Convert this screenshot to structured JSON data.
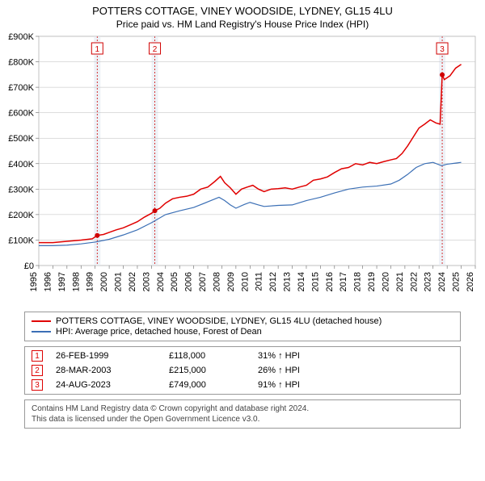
{
  "title1": "POTTERS COTTAGE, VINEY WOODSIDE, LYDNEY, GL15 4LU",
  "title2": "Price paid vs. HM Land Registry's House Price Index (HPI)",
  "title_fontsize": 13,
  "subtitle_fontsize": 12,
  "chart": {
    "type": "line",
    "background_color": "#ffffff",
    "plot_border_color": "#aaaaaa",
    "grid_color": "#bbbbbb",
    "x_years": [
      1995,
      1996,
      1997,
      1998,
      1999,
      2000,
      2001,
      2002,
      2003,
      2004,
      2005,
      2006,
      2007,
      2008,
      2009,
      2010,
      2011,
      2012,
      2013,
      2014,
      2015,
      2016,
      2017,
      2018,
      2019,
      2020,
      2021,
      2022,
      2023,
      2024,
      2025,
      2026
    ],
    "xlim": [
      1995,
      2026
    ],
    "ylim": [
      0,
      900000
    ],
    "ytick_step": 100000,
    "ytick_labels": [
      "£0",
      "£100K",
      "£200K",
      "£300K",
      "£400K",
      "£500K",
      "£600K",
      "£700K",
      "£800K",
      "£900K"
    ],
    "series": [
      {
        "name": "property",
        "color": "#e00000",
        "width": 1.5,
        "points": [
          [
            1995.0,
            90000
          ],
          [
            1996.0,
            90000
          ],
          [
            1997.0,
            95000
          ],
          [
            1998.0,
            100000
          ],
          [
            1998.8,
            105000
          ],
          [
            1999.15,
            118000
          ],
          [
            1999.6,
            122000
          ],
          [
            2000.0,
            130000
          ],
          [
            2000.5,
            140000
          ],
          [
            2001.0,
            148000
          ],
          [
            2001.5,
            160000
          ],
          [
            2002.0,
            172000
          ],
          [
            2002.5,
            190000
          ],
          [
            2003.0,
            205000
          ],
          [
            2003.24,
            215000
          ],
          [
            2003.6,
            225000
          ],
          [
            2004.0,
            245000
          ],
          [
            2004.5,
            262000
          ],
          [
            2005.0,
            268000
          ],
          [
            2005.5,
            272000
          ],
          [
            2006.0,
            280000
          ],
          [
            2006.5,
            300000
          ],
          [
            2007.0,
            308000
          ],
          [
            2007.5,
            330000
          ],
          [
            2007.9,
            350000
          ],
          [
            2008.2,
            325000
          ],
          [
            2008.6,
            305000
          ],
          [
            2009.0,
            280000
          ],
          [
            2009.4,
            300000
          ],
          [
            2009.8,
            308000
          ],
          [
            2010.2,
            315000
          ],
          [
            2010.6,
            300000
          ],
          [
            2011.0,
            290000
          ],
          [
            2011.5,
            300000
          ],
          [
            2012.0,
            302000
          ],
          [
            2012.5,
            305000
          ],
          [
            2013.0,
            300000
          ],
          [
            2013.5,
            308000
          ],
          [
            2014.0,
            315000
          ],
          [
            2014.5,
            335000
          ],
          [
            2015.0,
            340000
          ],
          [
            2015.5,
            348000
          ],
          [
            2016.0,
            365000
          ],
          [
            2016.5,
            380000
          ],
          [
            2017.0,
            385000
          ],
          [
            2017.5,
            400000
          ],
          [
            2018.0,
            395000
          ],
          [
            2018.5,
            405000
          ],
          [
            2019.0,
            400000
          ],
          [
            2019.5,
            408000
          ],
          [
            2020.0,
            415000
          ],
          [
            2020.4,
            420000
          ],
          [
            2020.8,
            440000
          ],
          [
            2021.2,
            470000
          ],
          [
            2021.6,
            505000
          ],
          [
            2022.0,
            540000
          ],
          [
            2022.4,
            555000
          ],
          [
            2022.8,
            572000
          ],
          [
            2023.2,
            560000
          ],
          [
            2023.5,
            555000
          ],
          [
            2023.65,
            749000
          ],
          [
            2023.8,
            730000
          ],
          [
            2024.2,
            745000
          ],
          [
            2024.6,
            775000
          ],
          [
            2025.0,
            790000
          ]
        ]
      },
      {
        "name": "hpi",
        "color": "#3b6fb5",
        "width": 1.2,
        "points": [
          [
            1995.0,
            78000
          ],
          [
            1996.0,
            78000
          ],
          [
            1997.0,
            80000
          ],
          [
            1998.0,
            85000
          ],
          [
            1999.0,
            92000
          ],
          [
            2000.0,
            103000
          ],
          [
            2001.0,
            120000
          ],
          [
            2002.0,
            140000
          ],
          [
            2003.0,
            168000
          ],
          [
            2004.0,
            200000
          ],
          [
            2005.0,
            215000
          ],
          [
            2006.0,
            228000
          ],
          [
            2007.0,
            250000
          ],
          [
            2007.8,
            268000
          ],
          [
            2008.2,
            255000
          ],
          [
            2008.6,
            238000
          ],
          [
            2009.0,
            225000
          ],
          [
            2009.6,
            240000
          ],
          [
            2010.0,
            248000
          ],
          [
            2010.6,
            238000
          ],
          [
            2011.0,
            232000
          ],
          [
            2012.0,
            236000
          ],
          [
            2013.0,
            238000
          ],
          [
            2014.0,
            255000
          ],
          [
            2015.0,
            268000
          ],
          [
            2016.0,
            285000
          ],
          [
            2017.0,
            300000
          ],
          [
            2018.0,
            308000
          ],
          [
            2019.0,
            312000
          ],
          [
            2020.0,
            320000
          ],
          [
            2020.6,
            335000
          ],
          [
            2021.2,
            358000
          ],
          [
            2021.8,
            385000
          ],
          [
            2022.4,
            400000
          ],
          [
            2023.0,
            405000
          ],
          [
            2023.6,
            392000
          ],
          [
            2024.0,
            398000
          ],
          [
            2024.6,
            402000
          ],
          [
            2025.0,
            405000
          ]
        ]
      }
    ],
    "sales_markers": [
      {
        "n": "1",
        "year": 1999.15,
        "price": 118000,
        "band_color": "#eef2f7",
        "dash_color": "#d00000"
      },
      {
        "n": "2",
        "year": 2003.24,
        "price": 215000,
        "band_color": "#eef2f7",
        "dash_color": "#d00000"
      },
      {
        "n": "3",
        "year": 2023.65,
        "price": 749000,
        "band_color": "#eef2f7",
        "dash_color": "#d00000"
      }
    ],
    "sale_dot_color": "#d00000",
    "sale_dot_radius": 3
  },
  "legend": {
    "items": [
      {
        "color": "#e00000",
        "label": "POTTERS COTTAGE, VINEY WOODSIDE, LYDNEY, GL15 4LU (detached house)"
      },
      {
        "color": "#3b6fb5",
        "label": "HPI: Average price, detached house, Forest of Dean"
      }
    ]
  },
  "sales_table": {
    "rows": [
      {
        "n": "1",
        "date": "26-FEB-1999",
        "price": "£118,000",
        "delta": "31% ↑ HPI"
      },
      {
        "n": "2",
        "date": "28-MAR-2003",
        "price": "£215,000",
        "delta": "26% ↑ HPI"
      },
      {
        "n": "3",
        "date": "24-AUG-2023",
        "price": "£749,000",
        "delta": "91% ↑ HPI"
      }
    ]
  },
  "footer_line1": "Contains HM Land Registry data © Crown copyright and database right 2024.",
  "footer_line2": "This data is licensed under the Open Government Licence v3.0."
}
